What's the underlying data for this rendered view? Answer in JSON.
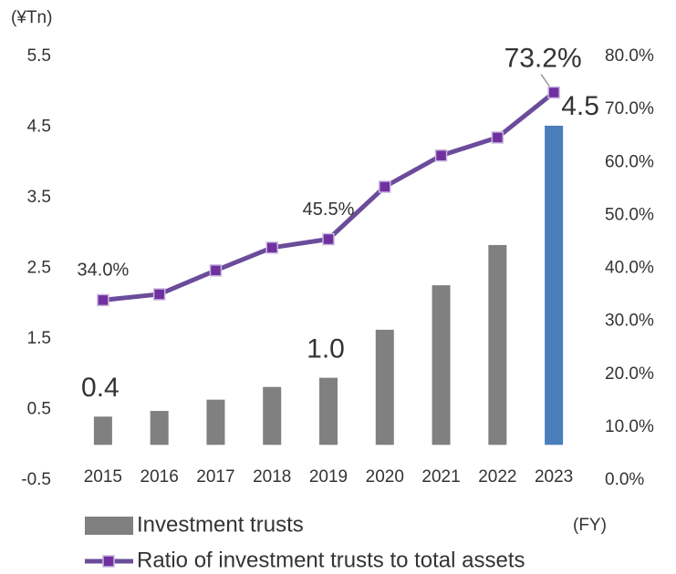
{
  "chart_data": {
    "type": "bar_line",
    "y_unit": "(¥Tn)",
    "x_unit": "(FY)",
    "categories": [
      "2015",
      "2016",
      "2017",
      "2018",
      "2019",
      "2020",
      "2021",
      "2022",
      "2023"
    ],
    "series": [
      {
        "name": "Investment trusts",
        "type": "bar",
        "color": "#808080",
        "colors": [
          "#808080",
          "#808080",
          "#808080",
          "#808080",
          "#808080",
          "#808080",
          "#808080",
          "#808080",
          "#4a7ebb"
        ],
        "values": [
          0.4,
          0.48,
          0.64,
          0.82,
          0.95,
          1.63,
          2.26,
          2.83,
          4.52
        ],
        "value_labels": [
          "0.4",
          null,
          null,
          null,
          "1.0",
          null,
          null,
          null,
          "4.5"
        ]
      },
      {
        "name": "Ratio of investment trusts to total assets",
        "type": "line",
        "axis": "y2",
        "color": "#6b4c9a",
        "marker_color": "#7030a0",
        "values": [
          34.0,
          35.1,
          39.6,
          43.9,
          45.5,
          55.4,
          61.3,
          64.7,
          73.2
        ],
        "value_labels": [
          "34.0%",
          null,
          null,
          null,
          "45.5%",
          null,
          null,
          null,
          "73.2%"
        ]
      }
    ],
    "ylim": [
      -0.5,
      5.5
    ],
    "yticks": [
      -0.5,
      0.5,
      1.5,
      2.5,
      3.5,
      4.5,
      5.5
    ],
    "y2lim": [
      0,
      80
    ],
    "y2ticks": [
      {
        "value": 0,
        "label": "0.0%"
      },
      {
        "value": 10,
        "label": "10.0%"
      },
      {
        "value": 20,
        "label": "20.0%"
      },
      {
        "value": 30,
        "label": "30.0%"
      },
      {
        "value": 40,
        "label": "40.0%"
      },
      {
        "value": 50,
        "label": "50.0%"
      },
      {
        "value": 60,
        "label": "60.0%"
      },
      {
        "value": 70,
        "label": "70.0%"
      },
      {
        "value": 80,
        "label": "80.0%"
      }
    ],
    "legend": "bottom"
  }
}
